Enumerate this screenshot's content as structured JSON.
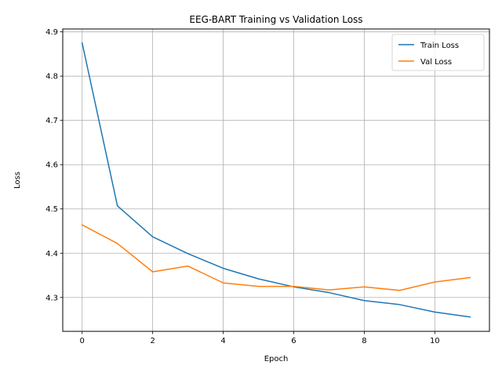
{
  "chart_data": {
    "type": "line",
    "title": "EEG-BART Training vs Validation Loss",
    "xlabel": "Epoch",
    "ylabel": "Loss",
    "xlim": [
      -0.55,
      11.55
    ],
    "ylim": [
      4.2235,
      4.9065
    ],
    "x_ticks": [
      0,
      2,
      4,
      6,
      8,
      10
    ],
    "y_ticks": [
      4.3,
      4.4,
      4.5,
      4.6,
      4.7,
      4.8,
      4.9
    ],
    "grid": true,
    "legend_position": "top-right",
    "x": [
      0,
      1,
      2,
      3,
      4,
      5,
      6,
      7,
      8,
      9,
      10,
      11
    ],
    "series": [
      {
        "name": "Train Loss",
        "color": "#1f77b4",
        "values": [
          4.875,
          4.507,
          4.437,
          4.399,
          4.366,
          4.342,
          4.324,
          4.311,
          4.293,
          4.284,
          4.267,
          4.256
        ]
      },
      {
        "name": "Val Loss",
        "color": "#ff7f0e",
        "values": [
          4.464,
          4.422,
          4.358,
          4.371,
          4.333,
          4.325,
          4.325,
          4.317,
          4.324,
          4.316,
          4.335,
          4.345
        ]
      }
    ]
  }
}
